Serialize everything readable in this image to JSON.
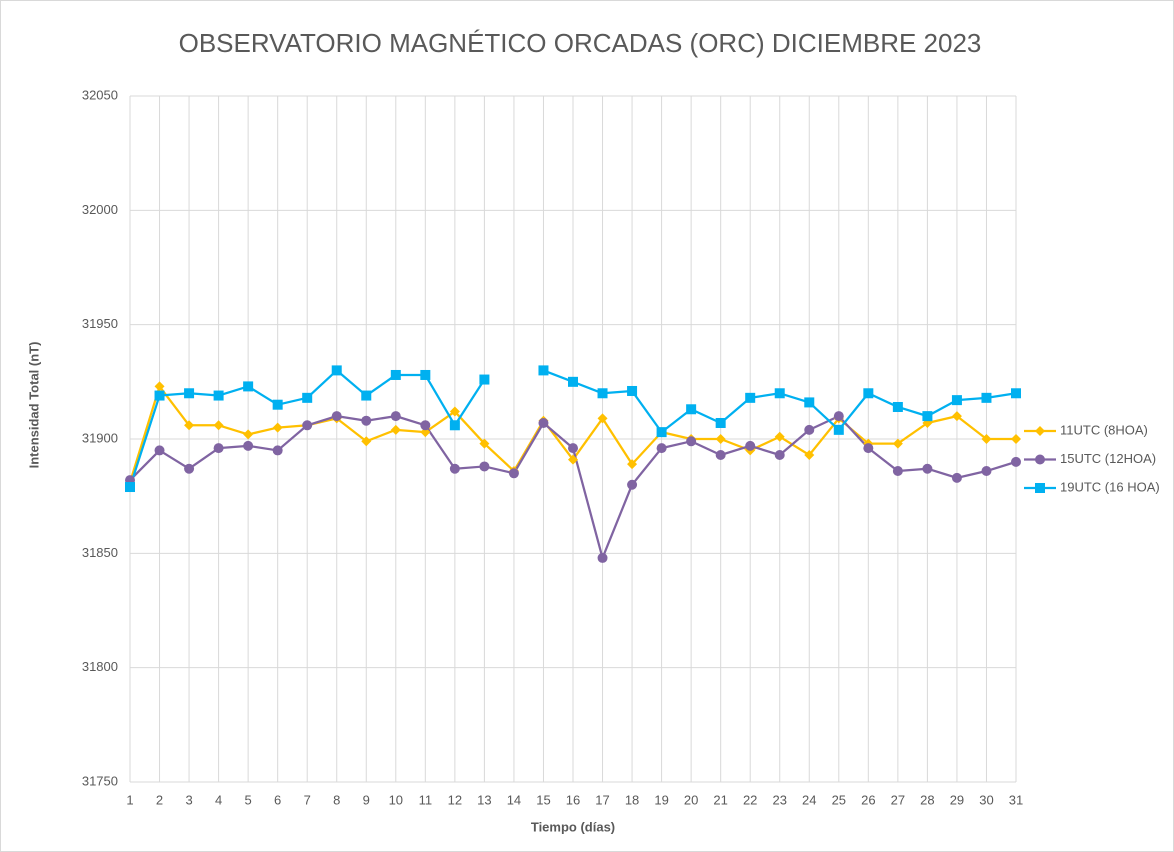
{
  "chart_data": {
    "type": "line",
    "title": "OBSERVATORIO MAGNÉTICO ORCADAS (ORC) DICIEMBRE 2023",
    "x_label": "Tiempo (días)",
    "y_label": "Intensidad Total (nT)",
    "x": [
      1,
      2,
      3,
      4,
      5,
      6,
      7,
      8,
      9,
      10,
      11,
      12,
      13,
      14,
      15,
      16,
      17,
      18,
      19,
      20,
      21,
      22,
      23,
      24,
      25,
      26,
      27,
      28,
      29,
      30,
      31
    ],
    "xlim": [
      1,
      31
    ],
    "xticks": [
      1,
      2,
      3,
      4,
      5,
      6,
      7,
      8,
      9,
      10,
      11,
      12,
      13,
      14,
      15,
      16,
      17,
      18,
      19,
      20,
      21,
      22,
      23,
      24,
      25,
      26,
      27,
      28,
      29,
      30,
      31
    ],
    "ylim": [
      31750,
      32050
    ],
    "yticks": [
      31750,
      31800,
      31850,
      31900,
      31950,
      32000,
      32050
    ],
    "grid": true,
    "legend": "right",
    "series": [
      {
        "name": "11UTC (8HOA)",
        "color": "#ffc000",
        "marker": "diamond",
        "values": [
          31881,
          31923,
          31906,
          31906,
          31902,
          31905,
          31906,
          31909,
          31899,
          31904,
          31903,
          31912,
          31898,
          31886,
          31908,
          31891,
          31909,
          31889,
          31903,
          31900,
          31900,
          31895,
          31901,
          31893,
          31909,
          31898,
          31898,
          31907,
          31910,
          31900,
          31900
        ]
      },
      {
        "name": "15UTC (12HOA)",
        "color": "#8064a2",
        "marker": "circle",
        "values": [
          31882,
          31895,
          31887,
          31896,
          31897,
          31895,
          31906,
          31910,
          31908,
          31910,
          31906,
          31887,
          31888,
          31885,
          31907,
          31896,
          31848,
          31880,
          31896,
          31899,
          31893,
          31897,
          31893,
          31904,
          31910,
          31896,
          31886,
          31887,
          31883,
          31886,
          31890
        ]
      },
      {
        "name": "19UTC (16 HOA)",
        "color": "#00b0f0",
        "marker": "square",
        "values": [
          31879,
          31919,
          31920,
          31919,
          31923,
          31915,
          31918,
          31930,
          31919,
          31928,
          31928,
          31906,
          31926,
          null,
          31930,
          31925,
          31920,
          31921,
          31903,
          31913,
          31907,
          31918,
          31920,
          31916,
          31904,
          31920,
          31914,
          31910,
          31917,
          31918,
          31920
        ]
      }
    ]
  }
}
